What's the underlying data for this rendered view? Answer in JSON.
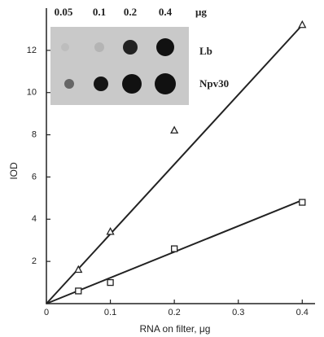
{
  "chart_data": {
    "type": "scatter",
    "xlabel": "RNA on filter, μg",
    "ylabel": "IOD",
    "xlim": [
      0,
      0.42
    ],
    "ylim": [
      0,
      14
    ],
    "xticks": [
      0,
      0.1,
      0.2,
      0.3,
      0.4
    ],
    "yticks": [
      2,
      4,
      6,
      8,
      10,
      12
    ],
    "color": "#222222",
    "series": [
      {
        "marker": "triangle",
        "x": [
          0.05,
          0.1,
          0.2,
          0.4
        ],
        "values": [
          1.6,
          3.4,
          8.2,
          13.2
        ]
      },
      {
        "marker": "square",
        "x": [
          0.05,
          0.1,
          0.2,
          0.4
        ],
        "values": [
          0.6,
          1.0,
          2.6,
          4.8
        ]
      }
    ],
    "fit_lines": [
      {
        "x": [
          0,
          0.4
        ],
        "values": [
          0,
          13.2
        ]
      },
      {
        "x": [
          0,
          0.4
        ],
        "values": [
          0,
          4.9
        ]
      }
    ],
    "inset": {
      "columns": [
        "0.05",
        "0.1",
        "0.2",
        "0.4"
      ],
      "unit": "μg",
      "rows": [
        "Lb",
        "Npv30"
      ]
    }
  }
}
